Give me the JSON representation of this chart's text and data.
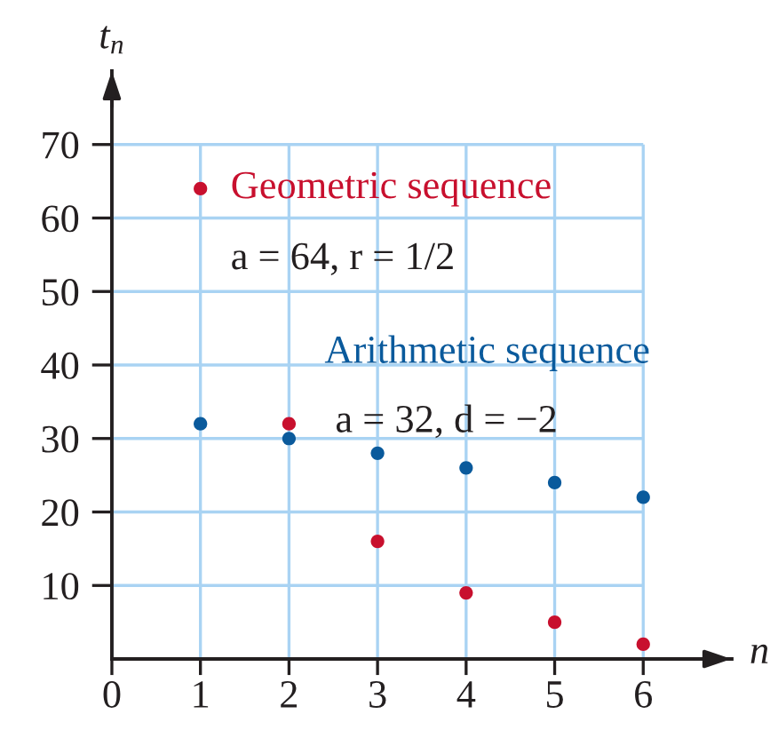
{
  "chart_data": {
    "type": "scatter",
    "xlabel": "n",
    "ylabel": "t$_{n}$",
    "x": [
      1,
      2,
      3,
      4,
      5,
      6
    ],
    "series": [
      {
        "name": "Geometric sequence",
        "color": "#c8102e",
        "values": [
          64,
          32,
          16,
          9,
          5,
          2
        ]
      },
      {
        "name": "Arithmetic sequence",
        "color": "#0a5a9c",
        "values": [
          32,
          30,
          28,
          26,
          24,
          22
        ]
      }
    ],
    "xlim": [
      0,
      7
    ],
    "ylim": [
      0,
      80
    ],
    "xticks": [
      0,
      1,
      2,
      3,
      4,
      5,
      6
    ],
    "yticks": [
      10,
      20,
      30,
      40,
      50,
      60,
      70
    ],
    "grid": true,
    "marker": "circle",
    "annotations": [
      "a = 64, r = 1/2",
      "a = 32, d = −2"
    ]
  }
}
